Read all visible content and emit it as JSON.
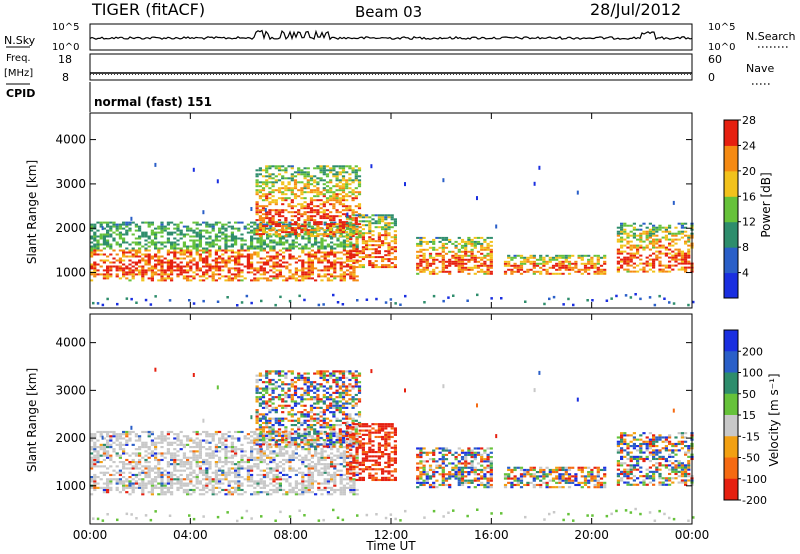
{
  "header": {
    "station": "TIGER (fitACF)",
    "beam": "Beam 03",
    "date": "28/Jul/2012"
  },
  "mini_panels": {
    "nsky_label": "N.Sky",
    "nsky_ticks": [
      "10^5",
      "10^0"
    ],
    "nsearch_label": "N.Search",
    "nsearch_ticks": [
      "10^5",
      "10^0"
    ],
    "freq_label": "Freq.",
    "freq_unit": "[MHz]",
    "freq_ticks": [
      "18",
      "8"
    ],
    "nave_label": "Nave",
    "nave_ticks": [
      "60",
      "0"
    ],
    "cpid_label": "CPID",
    "cpid_value": "normal (fast) 151"
  },
  "chart_data": [
    {
      "type": "heatmap",
      "name": "power",
      "xlabel": "",
      "ylabel": "Slant Range [km]",
      "xlim": [
        0,
        24
      ],
      "ylim": [
        200,
        4600
      ],
      "yticks": [
        "1000",
        "2000",
        "3000",
        "4000"
      ],
      "colorbar_label": "Power [dB]",
      "colorbar_ticks": [
        "4",
        "8",
        "12",
        "16",
        "20",
        "24",
        "28"
      ],
      "colorbar_colors": [
        "#1a2fe0",
        "#2a5fc8",
        "#2e8d6c",
        "#66c23a",
        "#f2c21c",
        "#f58a12",
        "#e62010"
      ],
      "echo_bands": [
        {
          "t_start": 0.0,
          "t_end": 10.6,
          "range_start": 800,
          "range_end": 2150
        },
        {
          "t_start": 6.6,
          "t_end": 10.8,
          "range_start": 1800,
          "range_end": 3400
        },
        {
          "t_start": 10.2,
          "t_end": 12.2,
          "range_start": 1100,
          "range_end": 2300
        },
        {
          "t_start": 13.0,
          "t_end": 16.0,
          "range_start": 950,
          "range_end": 1800
        },
        {
          "t_start": 16.5,
          "t_end": 20.5,
          "range_start": 950,
          "range_end": 1400
        },
        {
          "t_start": 21.0,
          "t_end": 24.0,
          "range_start": 1000,
          "range_end": 2100
        }
      ]
    },
    {
      "type": "heatmap",
      "name": "velocity",
      "xlabel": "Time UT",
      "ylabel": "Slant Range [km]",
      "xlim": [
        0,
        24
      ],
      "ylim": [
        200,
        4600
      ],
      "xticks": [
        "00:00",
        "04:00",
        "08:00",
        "12:00",
        "16:00",
        "20:00",
        "00:00"
      ],
      "yticks": [
        "1000",
        "2000",
        "3000",
        "4000"
      ],
      "colorbar_label": "Velocity [m s⁻¹]",
      "colorbar_ticks": [
        "200",
        "100",
        "50",
        "15",
        "-15",
        "-50",
        "-100",
        "-200"
      ],
      "colorbar_colors": [
        "#1a2fe0",
        "#2a5fc8",
        "#2e8d6c",
        "#66c23a",
        "#c8c8c8",
        "#f2a012",
        "#f56a12",
        "#e62010"
      ]
    }
  ]
}
